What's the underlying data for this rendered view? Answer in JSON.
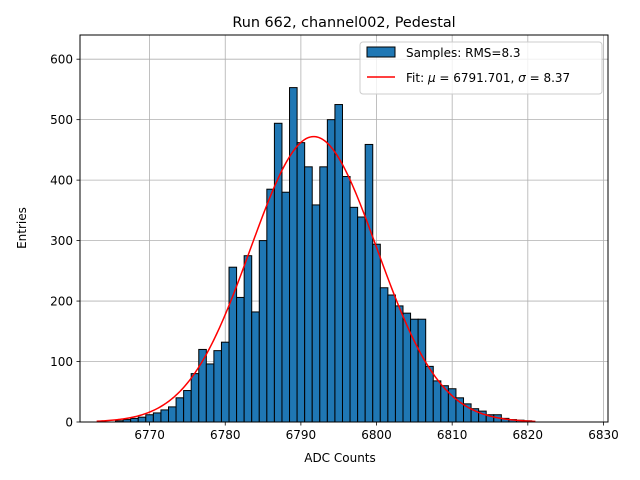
{
  "chart_data": {
    "type": "bar",
    "title": "Run 662, channel002, Pedestal",
    "xlabel": "ADC Counts",
    "ylabel": "Entries",
    "xlim": [
      6760.8,
      6830.6
    ],
    "ylim": [
      0,
      640
    ],
    "xticks": [
      6770,
      6780,
      6790,
      6800,
      6810,
      6820,
      6830
    ],
    "yticks": [
      0,
      100,
      200,
      300,
      400,
      500,
      600
    ],
    "grid": true,
    "bin_edges_start": 6765.5,
    "bin_width": 1,
    "bin_values": [
      2,
      4,
      6,
      8,
      12,
      15,
      20,
      25,
      40,
      52,
      80,
      120,
      96,
      118,
      132,
      256,
      206,
      275,
      182,
      300,
      385,
      494,
      380,
      553,
      462,
      422,
      359,
      422,
      500,
      525,
      406,
      355,
      339,
      459,
      294,
      222,
      210,
      192,
      180,
      170,
      170,
      92,
      68,
      60,
      55,
      40,
      30,
      22,
      18,
      12,
      12,
      6,
      4,
      3,
      2
    ],
    "series": [
      {
        "name": "Samples: RMS=8.3",
        "kind": "histogram",
        "color": "#1f77b4",
        "edgecolor": "#000000"
      },
      {
        "name": "Fit: μ = 6791.701, σ = 8.37",
        "kind": "gaussian",
        "color": "#ff0000",
        "mu": 6791.701,
        "sigma": 8.37,
        "amplitude": 472,
        "x_range": [
          6763,
          6821
        ]
      }
    ],
    "legend": {
      "placement": "top-right",
      "entries": [
        {
          "prefix": "Samples: RMS=8.3",
          "mu_symbol": "",
          "mid": "",
          "sigma_symbol": "",
          "suffix": ""
        },
        {
          "prefix": "Fit: ",
          "mu_symbol": "μ",
          "mid": " = 6791.701, ",
          "sigma_symbol": "σ",
          "suffix": " = 8.37"
        }
      ]
    }
  }
}
